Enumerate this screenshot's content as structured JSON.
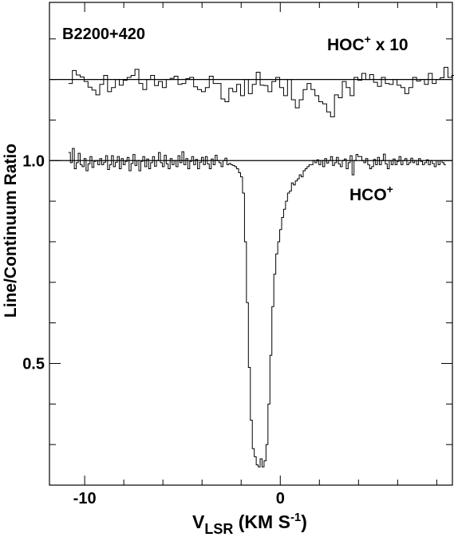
{
  "chart_data": {
    "type": "line",
    "source_label": "B2200+420",
    "xlabel": {
      "main": "V",
      "sub": "LSR",
      "unit_pre": " (KM S",
      "unit_sup": "-1",
      "unit_post": ")"
    },
    "ylabel": "Line/Continuum Ratio",
    "xlim": [
      -11.8,
      8.8
    ],
    "ylim": [
      0.2,
      1.39
    ],
    "x_ticks": [
      -10,
      0
    ],
    "x_tick_labels": [
      "-10",
      "0"
    ],
    "y_ticks": [
      0.5,
      1.0
    ],
    "y_tick_labels": [
      "0.5",
      "1.0"
    ],
    "baselines": [
      1.0,
      1.2
    ],
    "series": [
      {
        "name": "HOC+ x 10",
        "label_main": "HOC",
        "label_sup": "+",
        "label_post": " x 10",
        "x_start": -10.83,
        "x_step": 0.2,
        "values": [
          1.19,
          1.222,
          1.211,
          1.206,
          1.195,
          1.181,
          1.174,
          1.162,
          1.188,
          1.21,
          1.17,
          1.18,
          1.2,
          1.186,
          1.198,
          1.205,
          1.21,
          1.225,
          1.19,
          1.175,
          1.2,
          1.21,
          1.185,
          1.195,
          1.18,
          1.2,
          1.203,
          1.208,
          1.188,
          1.19,
          1.202,
          1.205,
          1.182,
          1.175,
          1.17,
          1.18,
          1.208,
          1.19,
          1.19,
          1.152,
          1.145,
          1.178,
          1.17,
          1.188,
          1.16,
          1.2,
          1.165,
          1.188,
          1.218,
          1.186,
          1.185,
          1.17,
          1.195,
          1.205,
          1.18,
          1.16,
          1.2,
          1.15,
          1.13,
          1.15,
          1.175,
          1.19,
          1.175,
          1.16,
          1.145,
          1.14,
          1.12,
          1.108,
          1.162,
          1.155,
          1.195,
          1.18,
          1.16,
          1.205,
          1.198,
          1.215,
          1.2,
          1.212,
          1.193,
          1.183,
          1.205,
          1.19,
          1.188,
          1.2,
          1.186,
          1.18,
          1.165,
          1.18,
          1.205,
          1.196,
          1.2,
          1.188,
          1.215,
          1.19,
          1.2,
          1.204,
          1.23,
          1.205,
          1.21,
          1.195,
          1.2,
          1.2
        ]
      },
      {
        "name": "HCO+",
        "label_main": "HCO",
        "label_sup": "+",
        "label_post": "",
        "x_start": -10.83,
        "x_step": 0.1,
        "values": [
          1.02,
          0.995,
          1.03,
          0.98,
          0.995,
          1.018,
          0.99,
          0.985,
          1.005,
          0.975,
          0.992,
          1.01,
          0.983,
          0.998,
          1.0,
          0.99,
          1.005,
          0.99,
          0.996,
          1.012,
          0.978,
          0.99,
          1.012,
          0.985,
          0.996,
          1.01,
          0.98,
          1.005,
          0.99,
          0.998,
          1.008,
          0.975,
          0.993,
          1.015,
          0.988,
          1.0,
          0.975,
          0.998,
          1.01,
          0.985,
          1.004,
          0.98,
          0.995,
          1.01,
          0.986,
          1.0,
          1.02,
          0.995,
          0.985,
          1.013,
          0.992,
          0.98,
          1.005,
          0.99,
          1.0,
          0.985,
          1.012,
          0.995,
          1.022,
          0.99,
          1.005,
          0.98,
          0.998,
          1.01,
          0.99,
          1.003,
          0.98,
          0.996,
          1.008,
          0.99,
          1.01,
          0.992,
          0.98,
          1.004,
          0.99,
          1.013,
          1.0,
          0.995,
          0.985,
          1.0,
          1.006,
          0.99,
          0.993,
          0.99,
          0.988,
          0.985,
          0.98,
          0.97,
          0.96,
          0.92,
          0.8,
          0.65,
          0.49,
          0.36,
          0.29,
          0.27,
          0.25,
          0.245,
          0.265,
          0.245,
          0.26,
          0.3,
          0.4,
          0.52,
          0.64,
          0.72,
          0.77,
          0.8,
          0.83,
          0.86,
          0.88,
          0.9,
          0.92,
          0.925,
          0.945,
          0.94,
          0.95,
          0.955,
          0.965,
          0.96,
          0.975,
          0.98,
          0.985,
          0.99,
          0.99,
          1.0,
          0.995,
          1.002,
          0.99,
          1.0,
          0.985,
          1.005,
          0.994,
          1.0,
          1.01,
          0.988,
          0.995,
          1.008,
          0.992,
          0.985,
          1.0,
          1.004,
          0.98,
          0.995,
          1.012,
          0.965,
          1.0,
          1.015,
          1.01,
          1.01,
          1.0,
          0.995,
          1.005,
          0.99,
          0.98,
          0.985,
          1.003,
          0.99,
          1.008,
          0.99,
          1.0,
          1.016,
          0.992,
          0.98,
          1.0,
          0.99,
          1.004,
          0.99,
          0.998,
          1.01,
          0.99,
          1.0,
          1.005,
          0.99,
          0.995,
          1.006,
          0.995,
          1.0,
          0.99,
          1.005,
          0.998,
          0.99,
          0.995,
          1.002,
          0.99,
          1.0,
          0.993,
          0.985,
          1.0,
          0.99,
          1.0,
          0.995,
          0.99
        ]
      }
    ]
  }
}
